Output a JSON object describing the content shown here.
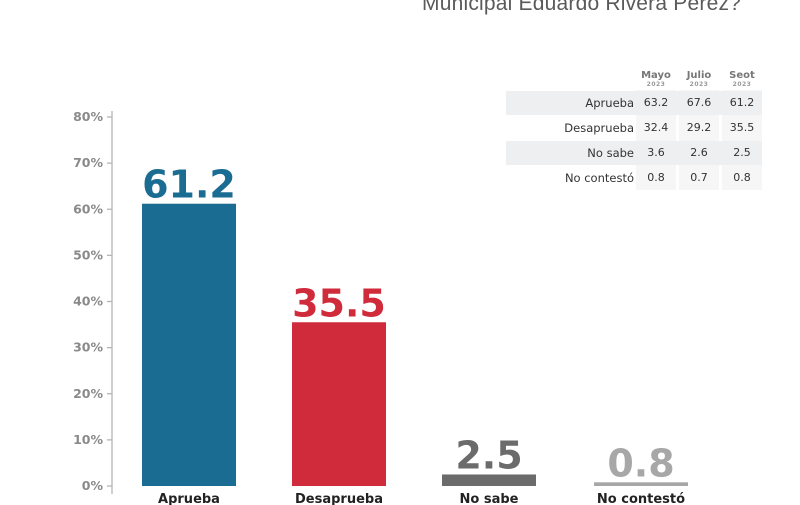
{
  "title": "Municipal Eduardo Rivera Pérez?",
  "chart_data": {
    "type": "bar",
    "categories": [
      "Aprueba",
      "Desaprueba",
      "No sabe",
      "No contestó"
    ],
    "values": [
      61.2,
      35.5,
      2.5,
      0.8
    ],
    "value_labels": [
      "61.2",
      "35.5",
      "2.5",
      "0.8"
    ],
    "colors": [
      "#1b6c93",
      "#d02b3b",
      "#6b6b6b",
      "#a7a7a7"
    ],
    "ylim": [
      0,
      80
    ],
    "yticks": [
      "0%",
      "10%",
      "20%",
      "30%",
      "40%",
      "50%",
      "60%",
      "70%",
      "80%"
    ],
    "grid": false,
    "legend": "none"
  },
  "table": {
    "columns": [
      {
        "month": "Mayo",
        "year": "2023"
      },
      {
        "month": "Julio",
        "year": "2023"
      },
      {
        "month": "Seot",
        "year": "2023"
      }
    ],
    "rows": [
      {
        "label": "Aprueba",
        "values": [
          "63.2",
          "67.6",
          "61.2"
        ]
      },
      {
        "label": "Desaprueba",
        "values": [
          "32.4",
          "29.2",
          "35.5"
        ]
      },
      {
        "label": "No sabe",
        "values": [
          "3.6",
          "2.6",
          "2.5"
        ]
      },
      {
        "label": "No contestó",
        "values": [
          "0.8",
          "0.7",
          "0.8"
        ]
      }
    ]
  }
}
